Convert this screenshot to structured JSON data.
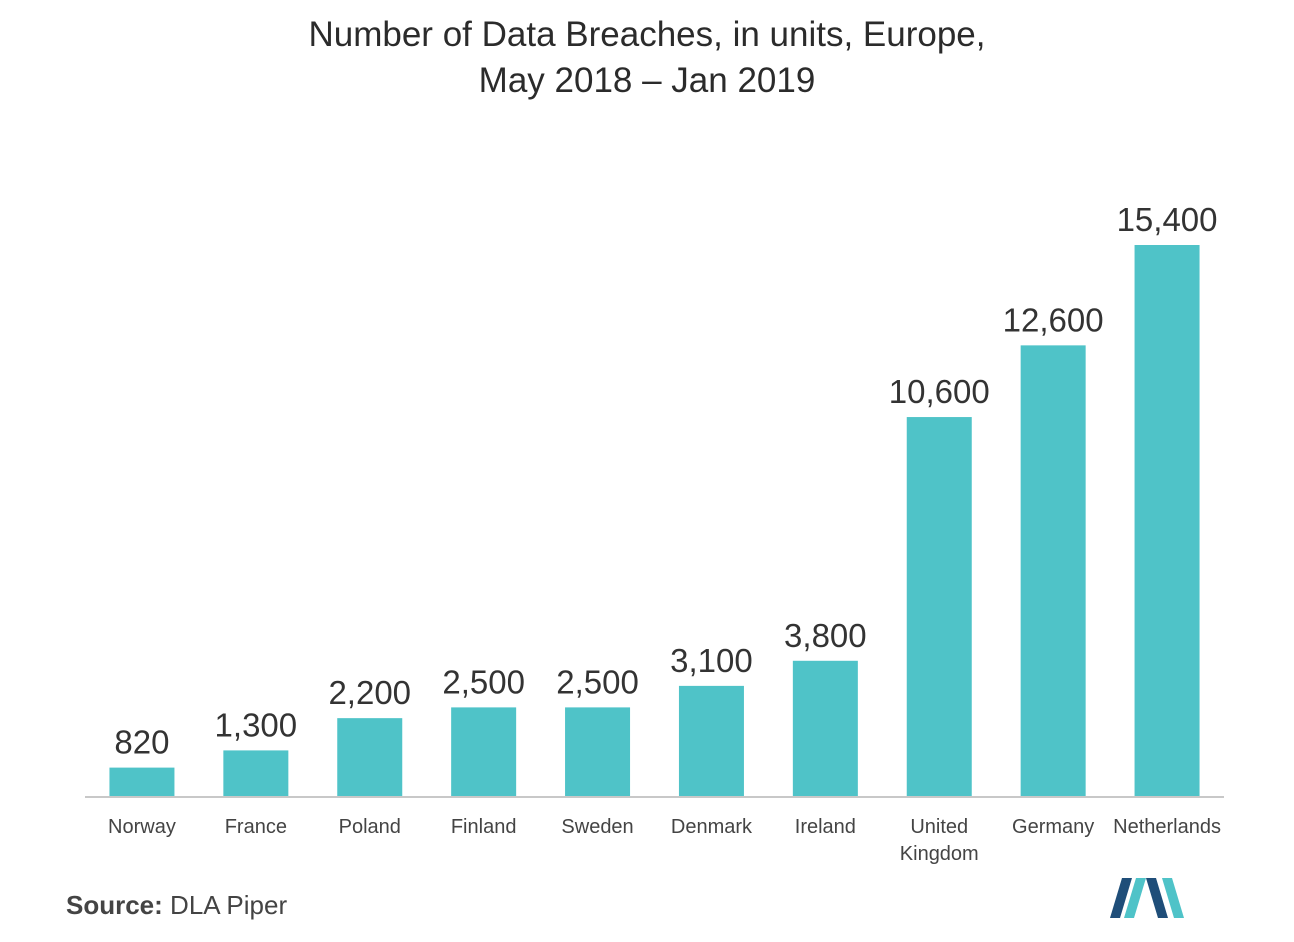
{
  "title": {
    "line1": "Number of Data Breaches, in units, Europe,",
    "line2": "May 2018 – Jan 2019"
  },
  "chart_data": {
    "type": "bar",
    "categories": [
      "Norway",
      "France",
      "Poland",
      "Finland",
      "Sweden",
      "Denmark",
      "Ireland",
      "United Kingdom",
      "Germany",
      "Netherlands"
    ],
    "category_lines": [
      [
        "Norway"
      ],
      [
        "France"
      ],
      [
        "Poland"
      ],
      [
        "Finland"
      ],
      [
        "Sweden"
      ],
      [
        "Denmark"
      ],
      [
        "Ireland"
      ],
      [
        "United",
        "Kingdom"
      ],
      [
        "Germany"
      ],
      [
        "Netherlands"
      ]
    ],
    "values": [
      820,
      1300,
      2200,
      2500,
      2500,
      3100,
      3800,
      10600,
      12600,
      15400
    ],
    "value_labels": [
      "820",
      "1,300",
      "2,200",
      "2,500",
      "2,500",
      "3,100",
      "3,800",
      "10,600",
      "12,600",
      "15,400"
    ],
    "ylim": [
      0,
      15400
    ],
    "bar_color": "#4fc3c8",
    "axis_color": "#c8c8c8",
    "grid": false,
    "legend": "none"
  },
  "source": {
    "label": "Source:",
    "text": "DLA Piper"
  },
  "logo": {
    "icon": "mordor-intelligence-logo",
    "colors": [
      "#1f4e79",
      "#4fc3c8"
    ]
  }
}
